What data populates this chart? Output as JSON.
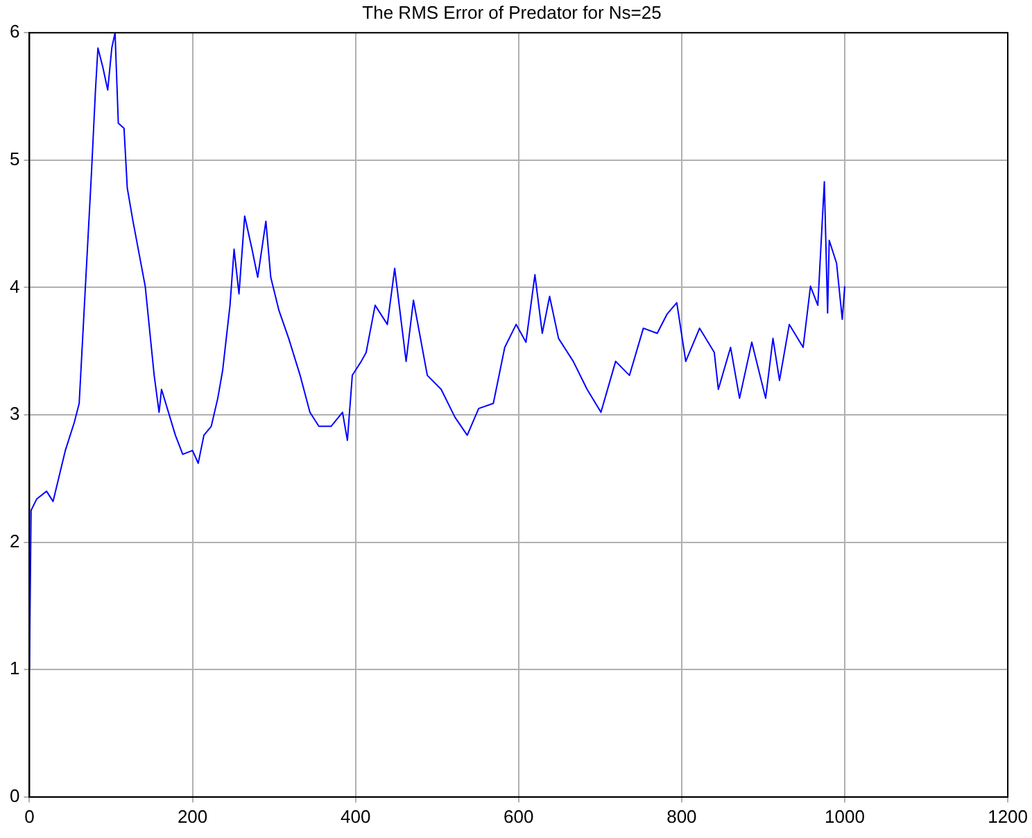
{
  "chart_data": {
    "type": "line",
    "title": "The RMS Error of Predator for Ns=25",
    "x": [
      0,
      2,
      9,
      21,
      29,
      38,
      44,
      55,
      61,
      76,
      81,
      84,
      90,
      96,
      101,
      105,
      109,
      116,
      120,
      127,
      142,
      153,
      159,
      162,
      179,
      188,
      200,
      207,
      214,
      223,
      231,
      237,
      246,
      251,
      257,
      264,
      273,
      280,
      290,
      296,
      306,
      318,
      332,
      344,
      355,
      370,
      384,
      390,
      396,
      407,
      413,
      424,
      439,
      448,
      462,
      471,
      488,
      505,
      522,
      537,
      551,
      569,
      583,
      597,
      609,
      620,
      629,
      638,
      649,
      667,
      684,
      701,
      719,
      736,
      753,
      770,
      782,
      794,
      805,
      822,
      840,
      845,
      860,
      871,
      886,
      903,
      912,
      920,
      932,
      949,
      958,
      967,
      975,
      979,
      981,
      990,
      997,
      1000
    ],
    "series": [
      {
        "color": "#0000ff",
        "values": [
          1.0,
          2.25,
          2.34,
          2.4,
          2.32,
          2.56,
          2.72,
          2.94,
          3.09,
          4.89,
          5.55,
          5.88,
          5.73,
          5.55,
          5.88,
          6.0,
          5.29,
          5.25,
          4.78,
          4.52,
          4.01,
          3.31,
          3.02,
          3.2,
          2.84,
          2.69,
          2.72,
          2.62,
          2.84,
          2.91,
          3.13,
          3.35,
          3.86,
          4.3,
          3.95,
          4.56,
          4.3,
          4.08,
          4.52,
          4.08,
          3.82,
          3.6,
          3.31,
          3.02,
          2.91,
          2.91,
          3.02,
          2.8,
          3.31,
          3.42,
          3.49,
          3.86,
          3.71,
          4.15,
          3.42,
          3.9,
          3.31,
          3.2,
          2.98,
          2.84,
          3.05,
          3.09,
          3.53,
          3.71,
          3.57,
          4.1,
          3.64,
          3.93,
          3.6,
          3.42,
          3.2,
          3.02,
          3.42,
          3.31,
          3.68,
          3.64,
          3.79,
          3.88,
          3.42,
          3.68,
          3.49,
          3.2,
          3.53,
          3.13,
          3.57,
          3.13,
          3.6,
          3.27,
          3.71,
          3.53,
          4.01,
          3.86,
          4.83,
          3.8,
          4.37,
          4.19,
          3.75,
          4.01
        ]
      }
    ],
    "xlim": [
      0,
      1200
    ],
    "xticks": [
      0,
      200,
      400,
      600,
      800,
      1000,
      1200
    ],
    "ylim": [
      0,
      6
    ],
    "yticks": [
      0,
      1,
      2,
      3,
      4,
      5,
      6
    ],
    "grid": true,
    "line_style": "solid",
    "marker": "none",
    "legend": false
  }
}
